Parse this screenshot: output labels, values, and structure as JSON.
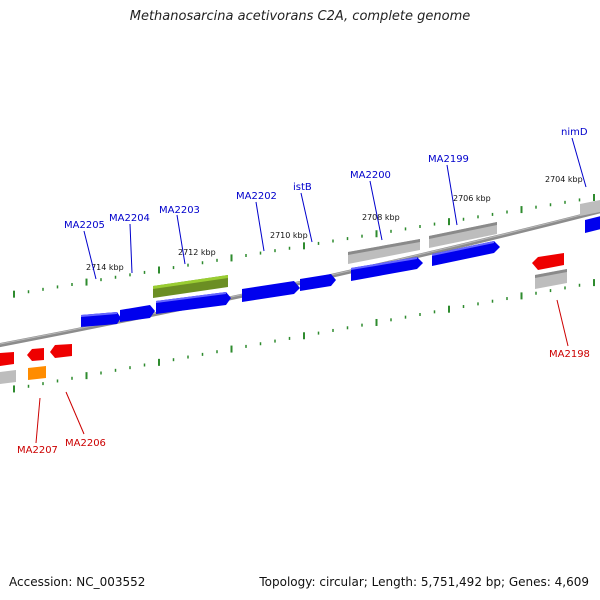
{
  "title": "Methanosarcina acetivorans C2A, complete genome",
  "footer": {
    "accession": "Accession: NC_003552",
    "topology": "Topology: circular; Length: 5,751,492 bp; Genes: 4,609"
  },
  "scale_labels": [
    "2714 kbp",
    "2712 kbp",
    "2710 kbp",
    "2708 kbp",
    "2706 kbp",
    "2704 kbp"
  ],
  "gene_labels_top": [
    "MA2205",
    "MA2204",
    "MA2203",
    "MA2202",
    "istB",
    "MA2200",
    "MA2199",
    "nimD"
  ],
  "gene_labels_bottom": [
    "MA2207",
    "MA2206",
    "MA2198"
  ],
  "colors": {
    "forward_gene": "#0000ee",
    "reverse_gene": "#ee0000",
    "rna_gene": "#6b8e23",
    "pseudo_gene": "#ff8c00",
    "feature_grey": "#b0b0b0",
    "backbone": "#808080",
    "tick": "#2e8b2e",
    "label_top": "#0000cc",
    "label_bottom": "#cc0000"
  }
}
